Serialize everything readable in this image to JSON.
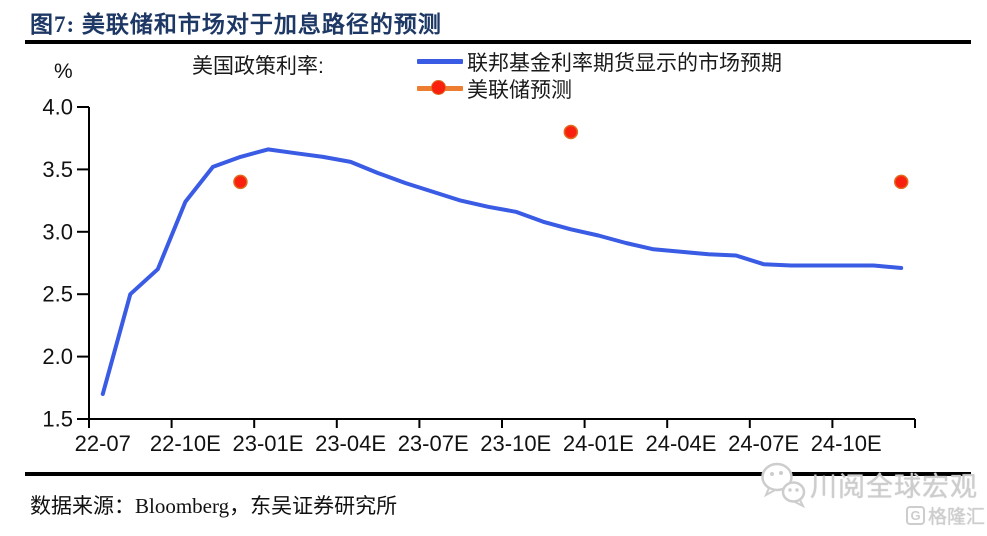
{
  "header": {
    "title": "图7: 美联储和市场对于加息路径的预测"
  },
  "chart": {
    "unit_label": "%",
    "series_prefix_label": "美国政策利率:",
    "legend": [
      {
        "label": "联邦基金利率期货显示的市场预期",
        "color": "#3A5BE4",
        "type": "line"
      },
      {
        "label": "美联储预测",
        "color": "#ED7D31",
        "marker_color": "#F9200E",
        "type": "line-marker"
      }
    ]
  },
  "chart_data": {
    "type": "line",
    "title": "美国政策利率",
    "ylabel": "%",
    "ylim": [
      1.5,
      4.0
    ],
    "y_ticks": [
      1.5,
      2.0,
      2.5,
      3.0,
      3.5,
      4.0
    ],
    "grid": false,
    "legend_position": "top",
    "x_categories": [
      "22-07",
      "22-08",
      "22-09",
      "22-10",
      "22-11",
      "22-12",
      "23-01",
      "23-02",
      "23-03",
      "23-04",
      "23-05",
      "23-06",
      "23-07",
      "23-08",
      "23-09",
      "23-10",
      "23-11",
      "23-12",
      "24-01",
      "24-02",
      "24-03",
      "24-04",
      "24-05",
      "24-06",
      "24-07",
      "24-08",
      "24-09",
      "24-10",
      "24-11",
      "24-12"
    ],
    "x_tick_labels": [
      "22-07",
      "22-10E",
      "23-01E",
      "23-04E",
      "23-07E",
      "23-10E",
      "24-01E",
      "24-04E",
      "24-07E",
      "24-10E"
    ],
    "x_tick_every": 3,
    "series": [
      {
        "name": "联邦基金利率期货显示的市场预期",
        "type": "line",
        "color": "#3A5BE4",
        "values": [
          1.7,
          2.5,
          2.7,
          3.24,
          3.52,
          3.6,
          3.66,
          3.63,
          3.6,
          3.56,
          3.47,
          3.39,
          3.32,
          3.25,
          3.2,
          3.16,
          3.08,
          3.02,
          2.97,
          2.91,
          2.86,
          2.84,
          2.82,
          2.81,
          2.74,
          2.73,
          2.73,
          2.73,
          2.73,
          2.71
        ]
      },
      {
        "name": "美联储预测",
        "type": "scatter",
        "color": "#F9200E",
        "marker_edge_color": "#E06A1F",
        "points": [
          {
            "x": "22-12",
            "y": 3.4
          },
          {
            "x": "23-12",
            "y": 3.8
          },
          {
            "x": "24-12",
            "y": 3.4
          }
        ]
      }
    ]
  },
  "footer": {
    "source": "数据来源：Bloomberg，东吴证券研究所"
  },
  "watermarks": {
    "wechat_account": "川阅全球宏观",
    "platform": "格隆汇"
  }
}
